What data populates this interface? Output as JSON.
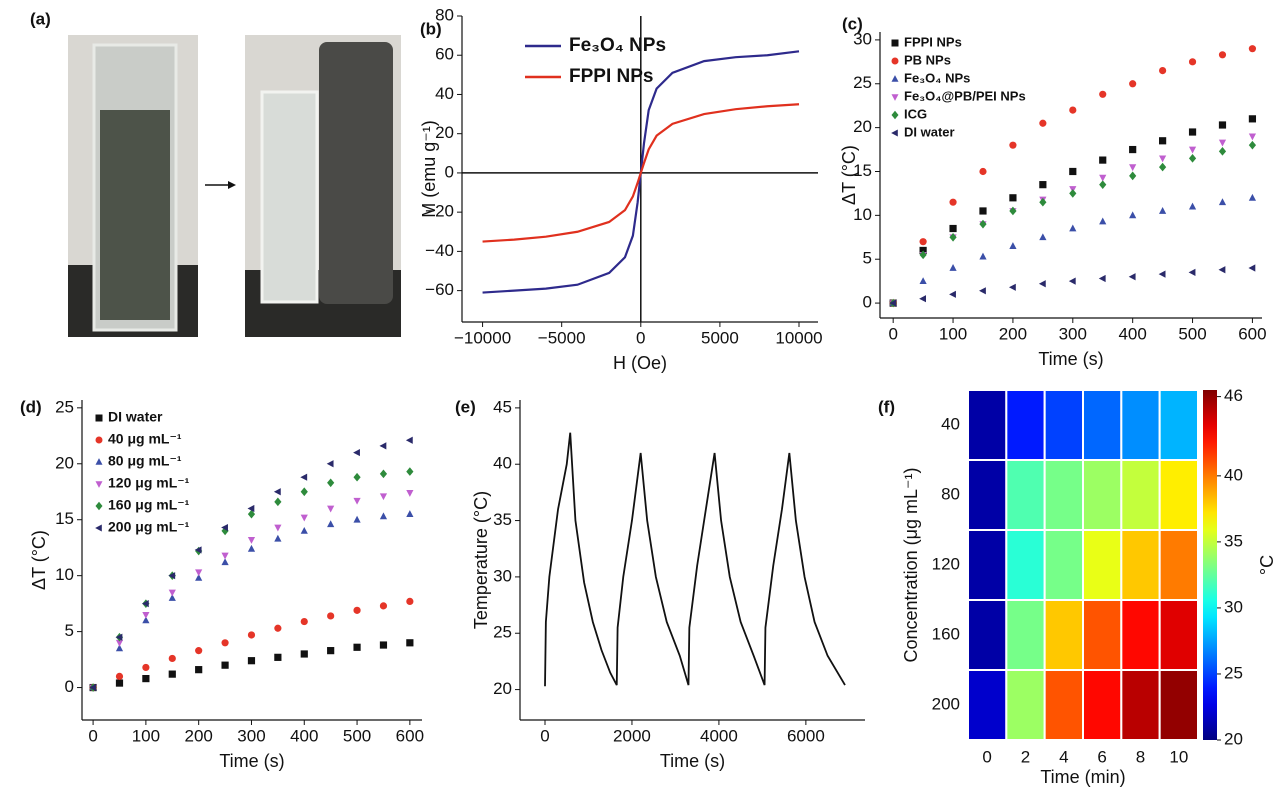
{
  "chart_data": [
    {
      "type": "image",
      "label": "(a)"
    },
    {
      "type": "line",
      "label": "(b)",
      "x_label": "H (Oe)",
      "y_label": "M (emu g⁻¹)",
      "xlim": [
        -11300,
        11200
      ],
      "ylim": [
        -76,
        80
      ],
      "xticks": [
        {
          "value": -10000,
          "label": "−10000"
        },
        {
          "value": -5000,
          "label": "−5000"
        },
        0,
        5000,
        10000
      ],
      "yticks": [
        {
          "value": -60,
          "label": "−60"
        },
        {
          "value": -40,
          "label": "−40"
        },
        {
          "value": -20,
          "label": "−20"
        },
        0,
        20,
        40,
        60,
        80
      ],
      "zero_lines": true,
      "legend": "upper left",
      "x": [
        -10000,
        -8000,
        -6000,
        -4000,
        -2000,
        -1000,
        -500,
        -200,
        0,
        200,
        500,
        1000,
        2000,
        4000,
        6000,
        8000,
        10000
      ],
      "series": [
        {
          "name": "Fe₃O₄ NPs",
          "color": "#2e2a8c",
          "values": [
            -61,
            -60,
            -59,
            -57,
            -51,
            -43,
            -32,
            -15,
            0,
            15,
            32,
            43,
            51,
            57,
            59,
            60,
            62
          ]
        },
        {
          "name": "FPPI NPs",
          "color": "#e0301e",
          "values": [
            -35,
            -34,
            -32.5,
            -30,
            -25,
            -19,
            -12,
            -5,
            0,
            5,
            12,
            19,
            25,
            30,
            32.5,
            34,
            35
          ]
        }
      ]
    },
    {
      "type": "scatter",
      "label": "(c)",
      "x_label": "Time (s)",
      "y_label": "ΔT (°C)",
      "xlim": [
        -22,
        616
      ],
      "ylim": [
        -1.7,
        30.9
      ],
      "xticks": [
        0,
        100,
        200,
        300,
        400,
        500,
        600
      ],
      "yticks": [
        0,
        5,
        10,
        15,
        20,
        25,
        30
      ],
      "legend": "upper left",
      "x": [
        0,
        50,
        100,
        150,
        200,
        250,
        300,
        350,
        400,
        450,
        500,
        550,
        600
      ],
      "series": [
        {
          "name": "FPPI NPs",
          "color": "#111111",
          "marker": "square",
          "values": [
            0,
            6,
            8.5,
            10.5,
            12,
            13.5,
            15,
            16.3,
            17.5,
            18.5,
            19.5,
            20.3,
            21
          ]
        },
        {
          "name": "PB NPs",
          "color": "#e53528",
          "marker": "circle",
          "values": [
            0,
            7,
            11.5,
            15,
            18,
            20.5,
            22,
            23.8,
            25,
            26.5,
            27.5,
            28.3,
            29
          ]
        },
        {
          "name": "Fe₃O₄ NPs",
          "color": "#3b4fa8",
          "marker": "triangle-up",
          "values": [
            0,
            2.5,
            4,
            5.3,
            6.5,
            7.5,
            8.5,
            9.3,
            10,
            10.5,
            11,
            11.5,
            12
          ]
        },
        {
          "name": "Fe₃O₄@PB/PEI NPs",
          "color": "#c05fcf",
          "marker": "triangle-down",
          "values": [
            0,
            5.5,
            7.5,
            9,
            10.5,
            11.8,
            13,
            14.3,
            15.5,
            16.5,
            17.5,
            18.3,
            19
          ]
        },
        {
          "name": "ICG",
          "color": "#2e8b3c",
          "marker": "diamond",
          "values": [
            0,
            5.5,
            7.5,
            9,
            10.5,
            11.5,
            12.5,
            13.5,
            14.5,
            15.5,
            16.5,
            17.3,
            18
          ]
        },
        {
          "name": "DI water",
          "color": "#2a2a6a",
          "marker": "triangle-left",
          "values": [
            0,
            0.5,
            1,
            1.4,
            1.8,
            2.2,
            2.5,
            2.8,
            3,
            3.3,
            3.5,
            3.8,
            4
          ]
        }
      ]
    },
    {
      "type": "scatter",
      "label": "(d)",
      "x_label": "Time (s)",
      "y_label": "ΔT (°C)",
      "xlim": [
        -21,
        623
      ],
      "ylim": [
        -2.9,
        25.7
      ],
      "xticks": [
        0,
        100,
        200,
        300,
        400,
        500,
        600
      ],
      "yticks": [
        0,
        5,
        10,
        15,
        20,
        25
      ],
      "legend": "upper left",
      "x": [
        0,
        50,
        100,
        150,
        200,
        250,
        300,
        350,
        400,
        450,
        500,
        550,
        600
      ],
      "series": [
        {
          "name": "DI water",
          "color": "#111111",
          "marker": "square",
          "values": [
            0,
            0.4,
            0.8,
            1.2,
            1.6,
            2,
            2.4,
            2.7,
            3,
            3.3,
            3.6,
            3.8,
            4
          ]
        },
        {
          "name": "40 μg mL⁻¹",
          "color": "#e53528",
          "marker": "circle",
          "values": [
            0,
            1,
            1.8,
            2.6,
            3.3,
            4,
            4.7,
            5.3,
            5.9,
            6.4,
            6.9,
            7.3,
            7.7
          ]
        },
        {
          "name": "80 μg mL⁻¹",
          "color": "#3b4fa8",
          "marker": "triangle-up",
          "values": [
            0,
            3.5,
            6,
            8,
            9.8,
            11.2,
            12.4,
            13.3,
            14,
            14.6,
            15,
            15.3,
            15.5
          ]
        },
        {
          "name": "120 μg mL⁻¹",
          "color": "#c05fcf",
          "marker": "triangle-down",
          "values": [
            0,
            4,
            6.5,
            8.5,
            10.3,
            11.8,
            13.2,
            14.3,
            15.2,
            16,
            16.7,
            17.1,
            17.4
          ]
        },
        {
          "name": "160 μg mL⁻¹",
          "color": "#2e8b3c",
          "marker": "diamond",
          "values": [
            0,
            4.5,
            7.5,
            10,
            12.2,
            14,
            15.5,
            16.6,
            17.5,
            18.3,
            18.8,
            19.1,
            19.3
          ]
        },
        {
          "name": "200 μg mL⁻¹",
          "color": "#2a2a6a",
          "marker": "triangle-left",
          "values": [
            0,
            4.5,
            7.5,
            10,
            12.3,
            14.3,
            16,
            17.5,
            18.8,
            20,
            21,
            21.6,
            22.1
          ]
        }
      ]
    },
    {
      "type": "line",
      "label": "(e)",
      "x_label": "Time (s)",
      "y_label": "Temperature (°C)",
      "xlim": [
        -575,
        7360
      ],
      "ylim": [
        17.3,
        45.7
      ],
      "xticks": [
        0,
        2000,
        4000,
        6000
      ],
      "yticks": [
        20,
        25,
        30,
        35,
        40,
        45
      ],
      "x": [
        0,
        20,
        100,
        300,
        500,
        580,
        700,
        900,
        1100,
        1300,
        1500,
        1650,
        1670,
        1800,
        2000,
        2200,
        2350,
        2550,
        2800,
        3100,
        3300,
        3320,
        3500,
        3700,
        3900,
        4050,
        4250,
        4500,
        4800,
        5050,
        5070,
        5250,
        5450,
        5620,
        5770,
        5970,
        6200,
        6500,
        6900
      ],
      "series": [
        {
          "color": "#111111",
          "values": [
            20.3,
            26,
            30,
            36,
            40,
            42.8,
            35,
            29.5,
            26,
            23.5,
            21.5,
            20.4,
            25.5,
            30,
            35,
            41,
            35,
            30,
            26,
            23,
            20.4,
            25.5,
            31,
            36,
            41,
            35,
            30,
            26,
            23,
            20.4,
            25.5,
            31,
            36,
            41,
            35,
            30,
            26,
            23,
            20.4
          ]
        }
      ]
    },
    {
      "type": "heatmap",
      "label": "(f)",
      "x_label": "Time (min)",
      "y_label": "Concentration (μg mL⁻¹)",
      "x_categories": [
        "0",
        "2",
        "4",
        "6",
        "8",
        "10"
      ],
      "y_categories": [
        "40",
        "80",
        "120",
        "160",
        "200"
      ],
      "values": [
        [
          21,
          24,
          25,
          26,
          27,
          28
        ],
        [
          21,
          32,
          33,
          34,
          35,
          37
        ],
        [
          21,
          31,
          33,
          36,
          38,
          40
        ],
        [
          21,
          33,
          38,
          41,
          43,
          44
        ],
        [
          22,
          34,
          41,
          43,
          45,
          46
        ]
      ],
      "colorbar_label": "°C",
      "colorbar_lim": [
        20,
        46.5
      ],
      "colorbar_ticks": [
        20,
        25,
        30,
        35,
        40,
        46
      ],
      "colormap": "jet"
    }
  ]
}
